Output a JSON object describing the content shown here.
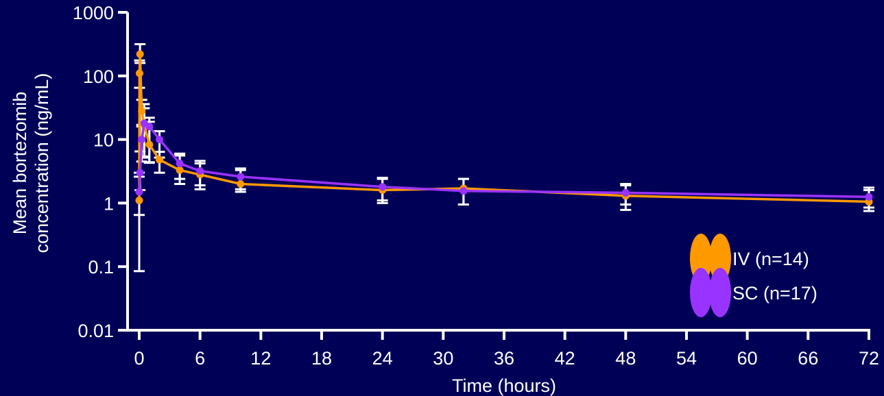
{
  "chart_data": {
    "type": "line",
    "title": "",
    "xlabel": "Time (hours)",
    "ylabel_lines": [
      "Mean bortezomib",
      "concentration (ng/mL)"
    ],
    "yscale": "log",
    "xlim": [
      0,
      72
    ],
    "ylim": [
      0.01,
      1000
    ],
    "x_ticks": [
      0,
      6,
      12,
      18,
      24,
      30,
      36,
      42,
      48,
      54,
      60,
      66,
      72
    ],
    "x_tick_labels": [
      "0",
      "6",
      "12",
      "18",
      "24",
      "30",
      "36",
      "42",
      "48",
      "54",
      "60",
      "66",
      "72"
    ],
    "y_ticks": [
      0.01,
      0.1,
      1,
      10,
      100,
      1000
    ],
    "y_tick_labels": [
      "0.01",
      "0.1",
      "1",
      "10",
      "100",
      "1000"
    ],
    "legend_position": "bottom-right",
    "series": [
      {
        "name": "IV (n=14)",
        "color": "#FF9900",
        "x": [
          0,
          0.03,
          0.08,
          0.25,
          0.5,
          1,
          2,
          4,
          6,
          10,
          24,
          32,
          48,
          72
        ],
        "y": [
          1.1,
          110,
          220,
          28,
          17,
          8.3,
          4.8,
          3.3,
          2.8,
          2.0,
          1.6,
          1.7,
          1.3,
          1.05
        ],
        "err_low": [
          0.085,
          65,
          160,
          17,
          5.2,
          4.3,
          3.0,
          2.0,
          1.65,
          1.5,
          1.0,
          0.95,
          0.78,
          0.75
        ],
        "err_high": [
          3.0,
          175,
          315,
          42,
          31,
          19,
          6.4,
          5.6,
          4.2,
          3.3,
          2.5,
          2.4,
          2.0,
          1.6
        ]
      },
      {
        "name": "SC (n=17)",
        "color": "#9933FF",
        "x": [
          0,
          0.08,
          0.25,
          0.5,
          1,
          2,
          4,
          6,
          10,
          24,
          32,
          48,
          72
        ],
        "y": [
          1.5,
          3.0,
          10,
          18,
          16,
          10,
          4.2,
          3.2,
          2.6,
          1.8,
          1.55,
          1.45,
          1.25
        ],
        "err_low": [
          0.65,
          1.6,
          4.5,
          5.4,
          4.4,
          5.2,
          2.4,
          1.9,
          1.65,
          1.1,
          0.95,
          0.95,
          0.85
        ],
        "err_high": [
          2.6,
          6.5,
          16,
          36,
          22,
          13.5,
          6.0,
          4.6,
          3.5,
          2.4,
          2.4,
          1.9,
          1.75
        ]
      }
    ]
  }
}
